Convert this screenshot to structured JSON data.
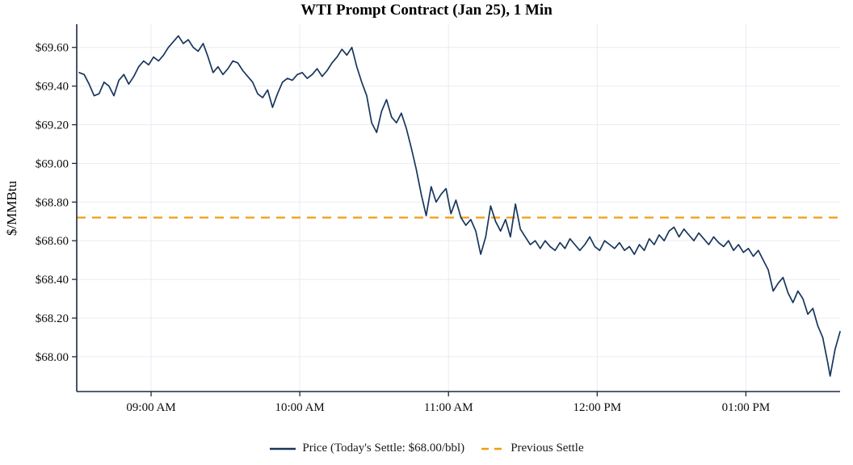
{
  "chart_data": {
    "type": "line",
    "title": "WTI Prompt Contract (Jan 25), 1 Min",
    "ylabel": "$/MMBtu",
    "xlabel": "",
    "grid": true,
    "legend_position": "bottom",
    "x_axis": {
      "unit": "minutes after 08:30 AM",
      "range": [
        0,
        308
      ],
      "ticks": [
        {
          "value": 30,
          "label": "09:00 AM"
        },
        {
          "value": 90,
          "label": "10:00 AM"
        },
        {
          "value": 150,
          "label": "11:00 AM"
        },
        {
          "value": 210,
          "label": "12:00 PM"
        },
        {
          "value": 270,
          "label": "01:00 PM"
        }
      ]
    },
    "y_axis": {
      "range": [
        67.82,
        69.72
      ],
      "ticks": [
        {
          "value": 68.0,
          "label": "$68.00"
        },
        {
          "value": 68.2,
          "label": "$68.20"
        },
        {
          "value": 68.4,
          "label": "$68.40"
        },
        {
          "value": 68.6,
          "label": "$68.60"
        },
        {
          "value": 68.8,
          "label": "$68.80"
        },
        {
          "value": 69.0,
          "label": "$69.00"
        },
        {
          "value": 69.2,
          "label": "$69.20"
        },
        {
          "value": 69.4,
          "label": "$69.40"
        },
        {
          "value": 69.6,
          "label": "$69.60"
        }
      ]
    },
    "series": [
      {
        "name": "Price (Today's Settle: $68.00/bbl)",
        "type": "line",
        "style": "solid",
        "color": "#17365c",
        "points": [
          [
            1,
            69.47
          ],
          [
            3,
            69.46
          ],
          [
            5,
            69.41
          ],
          [
            7,
            69.35
          ],
          [
            9,
            69.36
          ],
          [
            11,
            69.42
          ],
          [
            13,
            69.4
          ],
          [
            15,
            69.35
          ],
          [
            17,
            69.43
          ],
          [
            19,
            69.46
          ],
          [
            21,
            69.41
          ],
          [
            23,
            69.45
          ],
          [
            25,
            69.5
          ],
          [
            27,
            69.53
          ],
          [
            29,
            69.51
          ],
          [
            31,
            69.55
          ],
          [
            33,
            69.53
          ],
          [
            35,
            69.56
          ],
          [
            37,
            69.6
          ],
          [
            39,
            69.63
          ],
          [
            41,
            69.66
          ],
          [
            43,
            69.62
          ],
          [
            45,
            69.64
          ],
          [
            47,
            69.6
          ],
          [
            49,
            69.58
          ],
          [
            51,
            69.62
          ],
          [
            53,
            69.55
          ],
          [
            55,
            69.47
          ],
          [
            57,
            69.5
          ],
          [
            59,
            69.46
          ],
          [
            61,
            69.49
          ],
          [
            63,
            69.53
          ],
          [
            65,
            69.52
          ],
          [
            67,
            69.48
          ],
          [
            69,
            69.45
          ],
          [
            71,
            69.42
          ],
          [
            73,
            69.36
          ],
          [
            75,
            69.34
          ],
          [
            77,
            69.38
          ],
          [
            79,
            69.29
          ],
          [
            81,
            69.36
          ],
          [
            83,
            69.42
          ],
          [
            85,
            69.44
          ],
          [
            87,
            69.43
          ],
          [
            89,
            69.46
          ],
          [
            91,
            69.47
          ],
          [
            93,
            69.44
          ],
          [
            95,
            69.46
          ],
          [
            97,
            69.49
          ],
          [
            99,
            69.45
          ],
          [
            101,
            69.48
          ],
          [
            103,
            69.52
          ],
          [
            105,
            69.55
          ],
          [
            107,
            69.59
          ],
          [
            109,
            69.56
          ],
          [
            111,
            69.6
          ],
          [
            113,
            69.5
          ],
          [
            115,
            69.42
          ],
          [
            117,
            69.35
          ],
          [
            119,
            69.21
          ],
          [
            121,
            69.16
          ],
          [
            123,
            69.27
          ],
          [
            125,
            69.33
          ],
          [
            127,
            69.24
          ],
          [
            129,
            69.21
          ],
          [
            131,
            69.26
          ],
          [
            133,
            69.18
          ],
          [
            135,
            69.08
          ],
          [
            137,
            68.97
          ],
          [
            139,
            68.84
          ],
          [
            141,
            68.73
          ],
          [
            143,
            68.88
          ],
          [
            145,
            68.8
          ],
          [
            147,
            68.84
          ],
          [
            149,
            68.87
          ],
          [
            151,
            68.74
          ],
          [
            153,
            68.81
          ],
          [
            155,
            68.72
          ],
          [
            157,
            68.68
          ],
          [
            159,
            68.71
          ],
          [
            161,
            68.65
          ],
          [
            163,
            68.53
          ],
          [
            165,
            68.62
          ],
          [
            167,
            68.78
          ],
          [
            169,
            68.7
          ],
          [
            171,
            68.65
          ],
          [
            173,
            68.71
          ],
          [
            175,
            68.62
          ],
          [
            177,
            68.79
          ],
          [
            179,
            68.66
          ],
          [
            181,
            68.62
          ],
          [
            183,
            68.58
          ],
          [
            185,
            68.6
          ],
          [
            187,
            68.56
          ],
          [
            189,
            68.6
          ],
          [
            191,
            68.57
          ],
          [
            193,
            68.55
          ],
          [
            195,
            68.59
          ],
          [
            197,
            68.56
          ],
          [
            199,
            68.61
          ],
          [
            201,
            68.58
          ],
          [
            203,
            68.55
          ],
          [
            205,
            68.58
          ],
          [
            207,
            68.62
          ],
          [
            209,
            68.57
          ],
          [
            211,
            68.55
          ],
          [
            213,
            68.6
          ],
          [
            215,
            68.58
          ],
          [
            217,
            68.56
          ],
          [
            219,
            68.59
          ],
          [
            221,
            68.55
          ],
          [
            223,
            68.57
          ],
          [
            225,
            68.53
          ],
          [
            227,
            68.58
          ],
          [
            229,
            68.55
          ],
          [
            231,
            68.61
          ],
          [
            233,
            68.58
          ],
          [
            235,
            68.63
          ],
          [
            237,
            68.6
          ],
          [
            239,
            68.65
          ],
          [
            241,
            68.67
          ],
          [
            243,
            68.62
          ],
          [
            245,
            68.66
          ],
          [
            247,
            68.63
          ],
          [
            249,
            68.6
          ],
          [
            251,
            68.64
          ],
          [
            253,
            68.61
          ],
          [
            255,
            68.58
          ],
          [
            257,
            68.62
          ],
          [
            259,
            68.59
          ],
          [
            261,
            68.57
          ],
          [
            263,
            68.6
          ],
          [
            265,
            68.55
          ],
          [
            267,
            68.58
          ],
          [
            269,
            68.54
          ],
          [
            271,
            68.56
          ],
          [
            273,
            68.52
          ],
          [
            275,
            68.55
          ],
          [
            277,
            68.5
          ],
          [
            279,
            68.45
          ],
          [
            281,
            68.34
          ],
          [
            283,
            68.38
          ],
          [
            285,
            68.41
          ],
          [
            287,
            68.33
          ],
          [
            289,
            68.28
          ],
          [
            291,
            68.34
          ],
          [
            293,
            68.3
          ],
          [
            295,
            68.22
          ],
          [
            297,
            68.25
          ],
          [
            299,
            68.16
          ],
          [
            301,
            68.1
          ],
          [
            303,
            67.97
          ],
          [
            304,
            67.9
          ],
          [
            306,
            68.04
          ],
          [
            308,
            68.13
          ]
        ]
      },
      {
        "name": "Previous Settle",
        "type": "hline",
        "style": "dashed",
        "color": "#f39c12",
        "value": 68.72
      }
    ],
    "colors": {
      "price_line": "#17365c",
      "previous_settle_line": "#f39c12",
      "axis": "#1b2a41",
      "gridline": "#e7ecf2",
      "tick_label": "#0d0d0d"
    }
  }
}
